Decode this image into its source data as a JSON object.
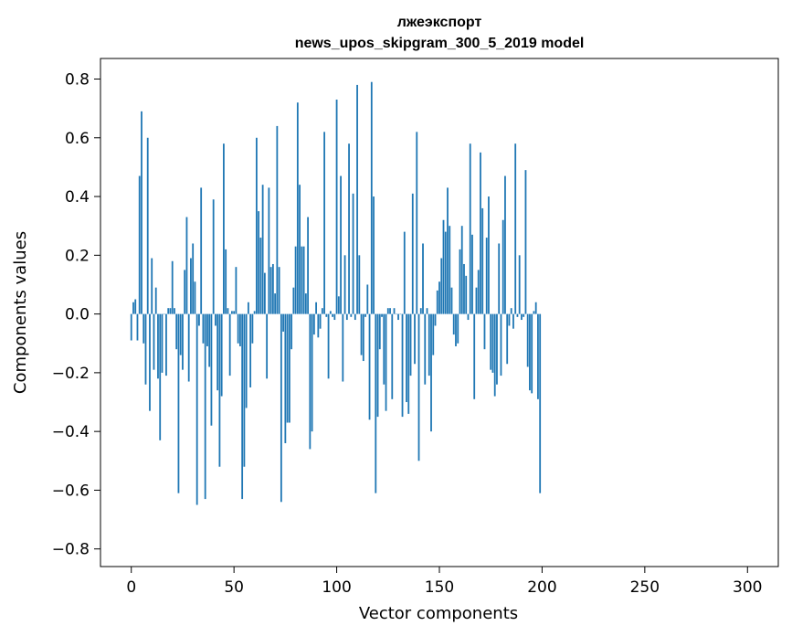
{
  "chart_data": {
    "type": "bar",
    "title_line1": "лжеэкспорт",
    "title_line2": "news_upos_skipgram_300_5_2019 model",
    "xlabel": "Vector components",
    "ylabel": "Components values",
    "xlim": [
      -15,
      315
    ],
    "ylim": [
      -0.86,
      0.87
    ],
    "xticks": [
      0,
      50,
      100,
      150,
      200,
      250,
      300
    ],
    "xtick_labels": [
      "0",
      "50",
      "100",
      "150",
      "200",
      "250",
      "300"
    ],
    "yticks": [
      -0.8,
      -0.6,
      -0.4,
      -0.2,
      0.0,
      0.2,
      0.4,
      0.6,
      0.8
    ],
    "ytick_labels": [
      "−0.8",
      "−0.6",
      "−0.4",
      "−0.2",
      "0.0",
      "0.2",
      "0.4",
      "0.6",
      "0.8"
    ],
    "bar_color": "#1f77b4",
    "grid": false,
    "values": [
      -0.09,
      0.04,
      0.05,
      -0.09,
      0.47,
      0.69,
      -0.1,
      -0.24,
      0.6,
      -0.33,
      0.19,
      -0.19,
      0.09,
      -0.22,
      -0.43,
      -0.2,
      0.0,
      -0.21,
      0.02,
      0.02,
      0.18,
      0.02,
      -0.12,
      -0.61,
      -0.14,
      -0.19,
      0.15,
      0.33,
      -0.23,
      0.19,
      0.24,
      0.11,
      -0.65,
      -0.04,
      0.43,
      -0.1,
      -0.63,
      -0.11,
      -0.18,
      -0.38,
      0.39,
      -0.04,
      -0.26,
      -0.52,
      -0.28,
      0.58,
      0.22,
      0.02,
      -0.21,
      0.01,
      0.01,
      0.16,
      -0.1,
      -0.11,
      -0.63,
      -0.52,
      -0.32,
      0.04,
      -0.25,
      -0.1,
      0.01,
      0.6,
      0.35,
      0.26,
      0.44,
      0.14,
      -0.22,
      0.43,
      0.16,
      0.17,
      0.07,
      0.64,
      0.16,
      -0.64,
      -0.06,
      -0.44,
      -0.37,
      -0.37,
      -0.12,
      0.09,
      0.23,
      0.72,
      0.44,
      0.23,
      0.23,
      0.07,
      0.33,
      -0.46,
      -0.4,
      -0.07,
      0.04,
      -0.08,
      -0.05,
      0.02,
      0.62,
      -0.01,
      -0.22,
      0.01,
      -0.01,
      -0.02,
      0.73,
      0.06,
      0.47,
      -0.23,
      0.2,
      -0.02,
      0.58,
      -0.01,
      0.41,
      -0.02,
      0.78,
      0.2,
      -0.14,
      -0.16,
      -0.01,
      0.1,
      -0.36,
      0.79,
      0.4,
      -0.61,
      -0.35,
      -0.12,
      -0.01,
      -0.24,
      -0.33,
      0.02,
      0.02,
      -0.29,
      0.02,
      0.0,
      -0.02,
      0.0,
      -0.35,
      0.28,
      -0.3,
      -0.34,
      -0.21,
      0.41,
      -0.17,
      0.62,
      -0.5,
      0.02,
      0.24,
      -0.24,
      0.02,
      -0.21,
      -0.4,
      -0.14,
      -0.04,
      0.08,
      0.11,
      0.19,
      0.32,
      0.28,
      0.43,
      0.3,
      0.09,
      -0.07,
      -0.11,
      -0.1,
      0.22,
      0.3,
      0.17,
      0.13,
      -0.02,
      0.58,
      0.27,
      -0.29,
      0.09,
      0.15,
      0.55,
      0.36,
      -0.12,
      0.26,
      0.4,
      -0.19,
      -0.2,
      -0.28,
      -0.24,
      0.24,
      -0.21,
      0.32,
      0.47,
      -0.17,
      -0.04,
      0.02,
      -0.05,
      0.58,
      -0.01,
      0.2,
      -0.02,
      -0.01,
      0.49,
      -0.18,
      -0.26,
      -0.27,
      0.01,
      0.04,
      -0.29,
      -0.61
    ]
  }
}
